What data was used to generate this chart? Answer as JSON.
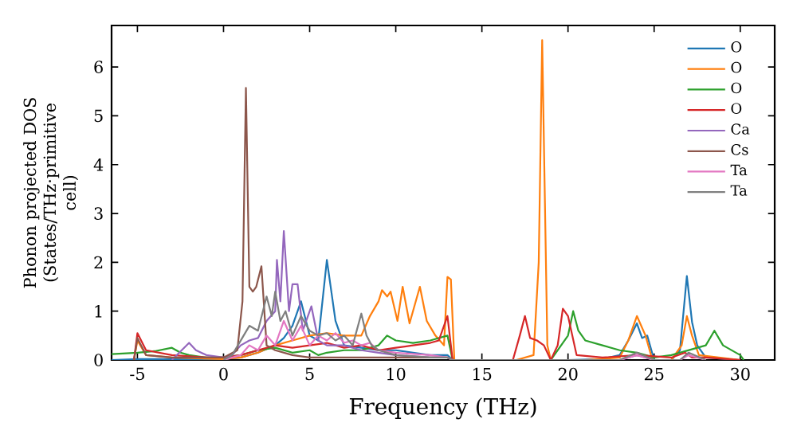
{
  "chart_data": {
    "type": "line",
    "xlabel": "Frequency (THz)",
    "ylabel": "Phonon projected DOS (States/THz·primitive cell)",
    "xlim": [
      -6.5,
      32
    ],
    "ylim": [
      0,
      6.85
    ],
    "xticks": [
      -5,
      0,
      5,
      10,
      15,
      20,
      25,
      30
    ],
    "yticks": [
      0,
      1,
      2,
      3,
      4,
      5,
      6
    ],
    "legend": "top right",
    "grid": false,
    "series": [
      {
        "name": "O",
        "color": "#1f77b4",
        "x": [
          -6.5,
          -5,
          0,
          1,
          2,
          3,
          3.5,
          4,
          4.5,
          5,
          5.5,
          6,
          6.5,
          7,
          8,
          9,
          10,
          11,
          12,
          13,
          13.3,
          17,
          20,
          22,
          23,
          23.5,
          24,
          24.3,
          24.6,
          25,
          26,
          26.5,
          26.9,
          27.2,
          27.5,
          28,
          30
        ],
        "values": [
          0,
          0.02,
          0.02,
          0.05,
          0.15,
          0.3,
          0.45,
          0.7,
          1.2,
          0.5,
          0.4,
          2.05,
          0.8,
          0.3,
          0.25,
          0.2,
          0.2,
          0.15,
          0.1,
          0.1,
          0,
          0,
          0,
          0.02,
          0.1,
          0.4,
          0.75,
          0.45,
          0.5,
          0,
          0,
          0.2,
          1.72,
          0.78,
          0.3,
          0.05,
          0
        ]
      },
      {
        "name": "O",
        "color": "#ff7f0e",
        "x": [
          -5.2,
          -5,
          -4.5,
          -3,
          0,
          1,
          2,
          3,
          4,
          5,
          6,
          7,
          8,
          8.5,
          9,
          9.2,
          9.5,
          9.7,
          10.1,
          10.4,
          10.8,
          11.4,
          11.8,
          12.3,
          12.8,
          13.0,
          13.2,
          13.4,
          17,
          18,
          18.3,
          18.5,
          18.8,
          19,
          21,
          23,
          23.5,
          24,
          24.5,
          24.9,
          26,
          26.6,
          26.9,
          27.2,
          27.6,
          30
        ],
        "values": [
          0,
          0.4,
          0.1,
          0.05,
          0.02,
          0.05,
          0.15,
          0.3,
          0.4,
          0.5,
          0.55,
          0.5,
          0.5,
          0.9,
          1.2,
          1.43,
          1.3,
          1.4,
          0.8,
          1.5,
          0.75,
          1.5,
          0.8,
          0.5,
          0.3,
          1.7,
          1.65,
          0,
          0,
          0.1,
          2.0,
          6.55,
          0.3,
          0,
          0,
          0.05,
          0.4,
          0.9,
          0.5,
          0,
          0,
          0.3,
          0.9,
          0.5,
          0.1,
          0
        ]
      },
      {
        "name": "O",
        "color": "#2ca02c",
        "x": [
          -6.5,
          -5,
          -4,
          -3,
          -2.5,
          -2,
          -1,
          0,
          1,
          2,
          3,
          4,
          5,
          5.5,
          6,
          7,
          8,
          9,
          9.5,
          10,
          11,
          12,
          13,
          13.3,
          17,
          19,
          19.6,
          20,
          20.3,
          20.6,
          21,
          22,
          23,
          24,
          25,
          26,
          27,
          28,
          28.5,
          29,
          30,
          30.2
        ],
        "values": [
          0.12,
          0.15,
          0.18,
          0.25,
          0.15,
          0.1,
          0.05,
          0.05,
          0.1,
          0.2,
          0.25,
          0.15,
          0.2,
          0.1,
          0.15,
          0.2,
          0.2,
          0.3,
          0.5,
          0.4,
          0.35,
          0.4,
          0.5,
          0,
          0,
          0,
          0.3,
          0.5,
          1.0,
          0.6,
          0.4,
          0.3,
          0.2,
          0.15,
          0.05,
          0.1,
          0.2,
          0.3,
          0.6,
          0.3,
          0.1,
          0
        ]
      },
      {
        "name": "O",
        "color": "#d62728",
        "x": [
          -5.2,
          -5,
          -4.5,
          -3,
          -1,
          0,
          1,
          2,
          3,
          4,
          5,
          6,
          7,
          8,
          9,
          10,
          11,
          12,
          12.5,
          13,
          13.3,
          16.8,
          17.2,
          17.5,
          17.8,
          18.2,
          18.6,
          19,
          19.4,
          19.7,
          20,
          20.5,
          22,
          24,
          26,
          26.8,
          27.2,
          28,
          30
        ],
        "values": [
          0,
          0.55,
          0.2,
          0.1,
          0.05,
          0.05,
          0.1,
          0.2,
          0.3,
          0.25,
          0.3,
          0.35,
          0.25,
          0.3,
          0.2,
          0.25,
          0.3,
          0.35,
          0.4,
          0.9,
          0,
          0,
          0.5,
          0.9,
          0.45,
          0.4,
          0.3,
          0,
          0.3,
          1.05,
          0.9,
          0.1,
          0.05,
          0.1,
          0.05,
          0.15,
          0.05,
          0.05,
          0
        ]
      },
      {
        "name": "Ca",
        "color": "#9467bd",
        "x": [
          -3,
          -2,
          -1.6,
          -1,
          0,
          0.5,
          1,
          1.5,
          2,
          2.5,
          3,
          3.1,
          3.3,
          3.5,
          3.8,
          4,
          4.3,
          4.6,
          5.1,
          5.5,
          6,
          7,
          8,
          9,
          10,
          12,
          13,
          13.3,
          23,
          24,
          25
        ],
        "values": [
          0,
          0.35,
          0.2,
          0.1,
          0.05,
          0.1,
          0.3,
          0.4,
          0.45,
          0.8,
          1.0,
          2.05,
          1.2,
          2.64,
          1.0,
          1.55,
          1.55,
          0.6,
          1.1,
          0.4,
          0.3,
          0.3,
          0.2,
          0.15,
          0.1,
          0.05,
          0.05,
          0,
          0,
          0.1,
          0
        ]
      },
      {
        "name": "Cs",
        "color": "#8c564b",
        "x": [
          -5.2,
          -5,
          -4.5,
          -3,
          0,
          0.8,
          1.1,
          1.3,
          1.5,
          1.7,
          1.9,
          2.2,
          2.5,
          3,
          4,
          5,
          6,
          8,
          10,
          13,
          13.3
        ],
        "values": [
          0,
          0.45,
          0.1,
          0.05,
          0.05,
          0.2,
          1.2,
          5.57,
          1.5,
          1.4,
          1.5,
          1.92,
          0.3,
          0.2,
          0.1,
          0.05,
          0.05,
          0.05,
          0.05,
          0.05,
          0
        ]
      },
      {
        "name": "Ta",
        "color": "#e377c2",
        "x": [
          0,
          1,
          1.5,
          2,
          2.5,
          3,
          3.5,
          4,
          4.5,
          5,
          5.5,
          6,
          6.5,
          7,
          7.5,
          8,
          8.5,
          9,
          10,
          12,
          13,
          13.3,
          23,
          24,
          25,
          26.5,
          27,
          28
        ],
        "values": [
          0,
          0.1,
          0.3,
          0.2,
          0.5,
          0.3,
          0.8,
          0.4,
          0.7,
          0.3,
          0.5,
          0.4,
          0.55,
          0.35,
          0.4,
          0.3,
          0.35,
          0.2,
          0.15,
          0.1,
          0.05,
          0,
          0,
          0.1,
          0,
          0,
          0.1,
          0
        ]
      },
      {
        "name": "Ta",
        "color": "#7f7f7f",
        "x": [
          0,
          0.5,
          1,
          1.5,
          2,
          2.5,
          2.8,
          3,
          3.3,
          3.6,
          4,
          4.5,
          5,
          5.5,
          6,
          6.5,
          7,
          7.5,
          8,
          8.3,
          8.6,
          9,
          10,
          12,
          13,
          13.3,
          23,
          24,
          25,
          26.5,
          27,
          28
        ],
        "values": [
          0,
          0.1,
          0.4,
          0.7,
          0.6,
          1.3,
          0.9,
          1.4,
          0.8,
          1.0,
          0.5,
          0.9,
          0.6,
          0.5,
          0.55,
          0.4,
          0.5,
          0.3,
          0.95,
          0.5,
          0.3,
          0.2,
          0.1,
          0.05,
          0.05,
          0,
          0,
          0.15,
          0,
          0,
          0.15,
          0
        ]
      }
    ]
  }
}
